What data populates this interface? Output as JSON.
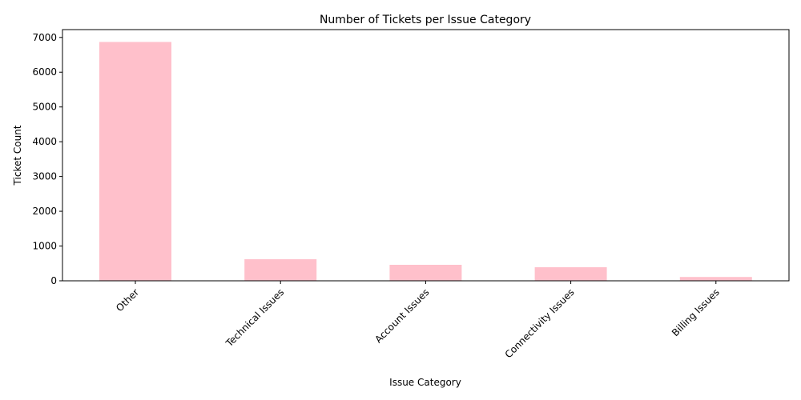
{
  "chart_data": {
    "type": "bar",
    "title": "Number of Tickets per Issue Category",
    "xlabel": "Issue Category",
    "ylabel": "Ticket Count",
    "categories": [
      "Other",
      "Technical Issues",
      "Account Issues",
      "Connectivity Issues",
      "Billing Issues"
    ],
    "values": [
      6870,
      620,
      460,
      390,
      110
    ],
    "ylim": [
      0,
      7225
    ],
    "yticks": [
      0,
      1000,
      2000,
      3000,
      4000,
      5000,
      6000,
      7000
    ],
    "bar_color": "#ffc0cb",
    "grid": false,
    "legend": "none"
  }
}
